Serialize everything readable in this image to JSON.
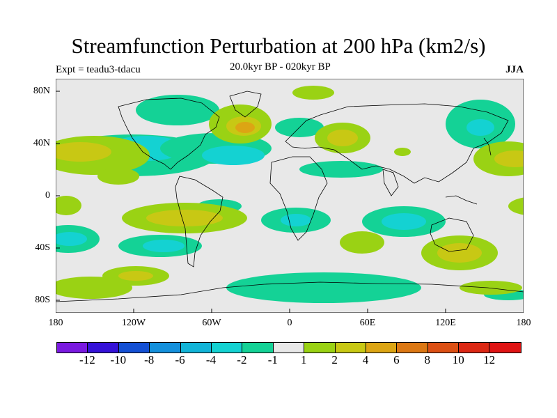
{
  "title": "Streamfunction Perturbation at 200 hPa (km2/s)",
  "experiment": "Expt = teadu3-tdacu",
  "period": "20.0kyr BP - 020kyr BP",
  "season": "JJA",
  "lat_labels": [
    "80N",
    "40N",
    "0",
    "40S",
    "80S"
  ],
  "lon_labels": [
    "180",
    "120W",
    "60W",
    "0",
    "60E",
    "120E",
    "180"
  ],
  "colorbar": {
    "colors": [
      "#7a1ae0",
      "#3512d8",
      "#1450d4",
      "#1490dc",
      "#12b4d8",
      "#14d2d2",
      "#14d296",
      "#e8e8e8",
      "#9ad214",
      "#c8c814",
      "#dca514",
      "#dc7814",
      "#dc5014",
      "#dc2814",
      "#e01414"
    ],
    "labels": [
      "-12",
      "-10",
      "-8",
      "-6",
      "-4",
      "-2",
      "-1",
      "1",
      "2",
      "4",
      "6",
      "8",
      "10",
      "12"
    ]
  },
  "palette": {
    "background": "#e8e8e8",
    "neg1": "#14d296",
    "neg2": "#14d2d2",
    "pos1": "#9ad214",
    "pos2": "#c8c814",
    "pos3": "#dca514"
  }
}
